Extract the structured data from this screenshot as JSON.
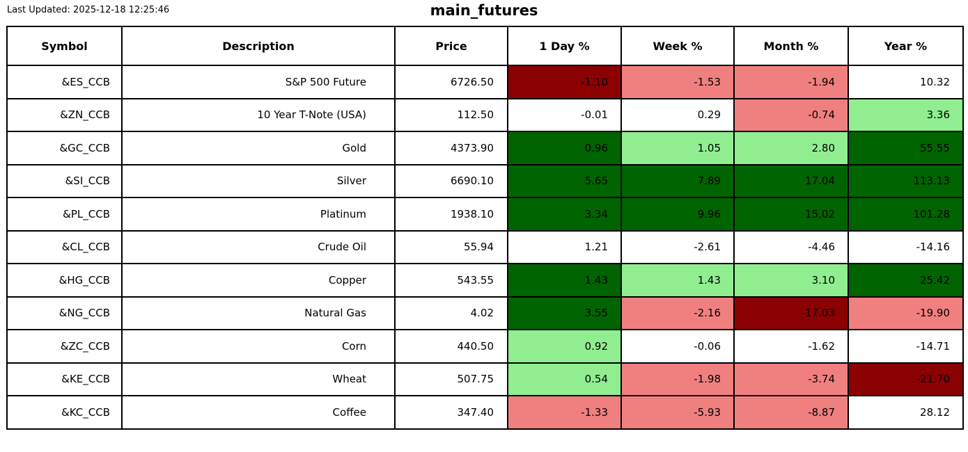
{
  "meta": {
    "last_updated": "Last Updated: 2025-12-18 12:25:46",
    "title": "main_futures"
  },
  "palette": {
    "dark_red": "#8b0000",
    "light_red": "#f08080",
    "dark_green": "#006400",
    "light_green": "#90ee90",
    "white": "#ffffff",
    "text": "#000000",
    "border": "#000000"
  },
  "table": {
    "columns": [
      {
        "label": "Symbol"
      },
      {
        "label": "Description"
      },
      {
        "label": "Price"
      },
      {
        "label": "1 Day %"
      },
      {
        "label": "Week %"
      },
      {
        "label": "Month %"
      },
      {
        "label": "Year %"
      }
    ],
    "rows": [
      {
        "symbol": "&ES_CCB",
        "description": "S&P 500 Future",
        "price": "6726.50",
        "cells": [
          {
            "value": "-1.10",
            "color": "dark_red"
          },
          {
            "value": "-1.53",
            "color": "light_red"
          },
          {
            "value": "-1.94",
            "color": "light_red"
          },
          {
            "value": "10.32",
            "color": "white"
          }
        ]
      },
      {
        "symbol": "&ZN_CCB",
        "description": "10 Year T-Note (USA)",
        "price": "112.50",
        "cells": [
          {
            "value": "-0.01",
            "color": "white"
          },
          {
            "value": "0.29",
            "color": "white"
          },
          {
            "value": "-0.74",
            "color": "light_red"
          },
          {
            "value": "3.36",
            "color": "light_green"
          }
        ]
      },
      {
        "symbol": "&GC_CCB",
        "description": "Gold",
        "price": "4373.90",
        "cells": [
          {
            "value": "0.96",
            "color": "dark_green"
          },
          {
            "value": "1.05",
            "color": "light_green"
          },
          {
            "value": "2.80",
            "color": "light_green"
          },
          {
            "value": "55.55",
            "color": "dark_green"
          }
        ]
      },
      {
        "symbol": "&SI_CCB",
        "description": "Silver",
        "price": "6690.10",
        "cells": [
          {
            "value": "5.65",
            "color": "dark_green"
          },
          {
            "value": "7.89",
            "color": "dark_green"
          },
          {
            "value": "17.04",
            "color": "dark_green"
          },
          {
            "value": "113.13",
            "color": "dark_green"
          }
        ]
      },
      {
        "symbol": "&PL_CCB",
        "description": "Platinum",
        "price": "1938.10",
        "cells": [
          {
            "value": "3.34",
            "color": "dark_green"
          },
          {
            "value": "9.96",
            "color": "dark_green"
          },
          {
            "value": "15.02",
            "color": "dark_green"
          },
          {
            "value": "101.28",
            "color": "dark_green"
          }
        ]
      },
      {
        "symbol": "&CL_CCB",
        "description": "Crude Oil",
        "price": "55.94",
        "cells": [
          {
            "value": "1.21",
            "color": "white"
          },
          {
            "value": "-2.61",
            "color": "white"
          },
          {
            "value": "-4.46",
            "color": "white"
          },
          {
            "value": "-14.16",
            "color": "white"
          }
        ]
      },
      {
        "symbol": "&HG_CCB",
        "description": "Copper",
        "price": "543.55",
        "cells": [
          {
            "value": "1.43",
            "color": "dark_green"
          },
          {
            "value": "1.43",
            "color": "light_green"
          },
          {
            "value": "3.10",
            "color": "light_green"
          },
          {
            "value": "25.42",
            "color": "dark_green"
          }
        ]
      },
      {
        "symbol": "&NG_CCB",
        "description": "Natural Gas",
        "price": "4.02",
        "cells": [
          {
            "value": "3.55",
            "color": "dark_green"
          },
          {
            "value": "-2.16",
            "color": "light_red"
          },
          {
            "value": "-17.03",
            "color": "dark_red"
          },
          {
            "value": "-19.90",
            "color": "light_red"
          }
        ]
      },
      {
        "symbol": "&ZC_CCB",
        "description": "Corn",
        "price": "440.50",
        "cells": [
          {
            "value": "0.92",
            "color": "light_green"
          },
          {
            "value": "-0.06",
            "color": "white"
          },
          {
            "value": "-1.62",
            "color": "white"
          },
          {
            "value": "-14.71",
            "color": "white"
          }
        ]
      },
      {
        "symbol": "&KE_CCB",
        "description": "Wheat",
        "price": "507.75",
        "cells": [
          {
            "value": "0.54",
            "color": "light_green"
          },
          {
            "value": "-1.98",
            "color": "light_red"
          },
          {
            "value": "-3.74",
            "color": "light_red"
          },
          {
            "value": "-21.70",
            "color": "dark_red"
          }
        ]
      },
      {
        "symbol": "&KC_CCB",
        "description": "Coffee",
        "price": "347.40",
        "cells": [
          {
            "value": "-1.33",
            "color": "light_red"
          },
          {
            "value": "-5.93",
            "color": "light_red"
          },
          {
            "value": "-8.87",
            "color": "light_red"
          },
          {
            "value": "28.12",
            "color": "white"
          }
        ]
      }
    ]
  },
  "chart_data": {
    "type": "table",
    "title": "main_futures",
    "subtitle": "Last Updated: 2025-12-18 12:25:46",
    "columns": [
      "Symbol",
      "Description",
      "Price",
      "1 Day %",
      "Week %",
      "Month %",
      "Year %"
    ],
    "rows": [
      [
        "&ES_CCB",
        "S&P 500 Future",
        6726.5,
        -1.1,
        -1.53,
        -1.94,
        10.32
      ],
      [
        "&ZN_CCB",
        "10 Year T-Note (USA)",
        112.5,
        -0.01,
        0.29,
        -0.74,
        3.36
      ],
      [
        "&GC_CCB",
        "Gold",
        4373.9,
        0.96,
        1.05,
        2.8,
        55.55
      ],
      [
        "&SI_CCB",
        "Silver",
        6690.1,
        5.65,
        7.89,
        17.04,
        113.13
      ],
      [
        "&PL_CCB",
        "Platinum",
        1938.1,
        3.34,
        9.96,
        15.02,
        101.28
      ],
      [
        "&CL_CCB",
        "Crude Oil",
        55.94,
        1.21,
        -2.61,
        -4.46,
        -14.16
      ],
      [
        "&HG_CCB",
        "Copper",
        543.55,
        1.43,
        1.43,
        3.1,
        25.42
      ],
      [
        "&NG_CCB",
        "Natural Gas",
        4.02,
        3.55,
        -2.16,
        -17.03,
        -19.9
      ],
      [
        "&ZC_CCB",
        "Corn",
        440.5,
        0.92,
        -0.06,
        -1.62,
        -14.71
      ],
      [
        "&KE_CCB",
        "Wheat",
        507.75,
        0.54,
        -1.98,
        -3.74,
        -21.7
      ],
      [
        "&KC_CCB",
        "Coffee",
        347.4,
        -1.33,
        -5.93,
        -8.87,
        28.12
      ]
    ],
    "legend_position": "none",
    "grid": true,
    "cell_fill_colors": {
      "strong_gain": "#006400",
      "mild_gain": "#90ee90",
      "neutral": "#ffffff",
      "mild_loss": "#f08080",
      "strong_loss": "#8b0000"
    }
  }
}
